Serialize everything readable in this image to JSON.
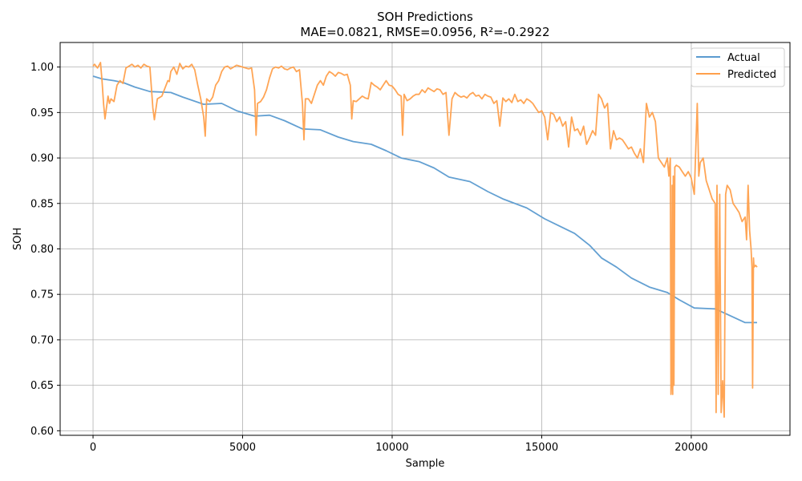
{
  "chart_data": {
    "type": "line",
    "title": "SOH Predictions",
    "subtitle": "MAE=0.0821, RMSE=0.0956, R²=-0.2922",
    "xlabel": "Sample",
    "ylabel": "SOH",
    "xlim": [
      -1100,
      23300
    ],
    "ylim": [
      0.595,
      1.027
    ],
    "x_ticks": [
      0,
      5000,
      10000,
      15000,
      20000
    ],
    "y_ticks": [
      0.6,
      0.65,
      0.7,
      0.75,
      0.8,
      0.85,
      0.9,
      0.95,
      1.0
    ],
    "x_tick_labels": [
      "0",
      "5000",
      "10000",
      "15000",
      "20000"
    ],
    "y_tick_labels": [
      "0.60",
      "0.65",
      "0.70",
      "0.75",
      "0.80",
      "0.85",
      "0.90",
      "0.95",
      "1.00"
    ],
    "grid": true,
    "legend": "top-right",
    "series": [
      {
        "name": "Actual",
        "color": "#5b9bd0",
        "x": [
          0,
          300,
          700,
          1000,
          1400,
          1900,
          2600,
          3000,
          3700,
          4300,
          4800,
          5400,
          5900,
          6400,
          7000,
          7600,
          8200,
          8700,
          9300,
          9800,
          10300,
          10900,
          11400,
          11900,
          12600,
          13200,
          13700,
          14500,
          15100,
          15600,
          16100,
          16600,
          17000,
          17500,
          18000,
          18600,
          19200,
          19600,
          20100,
          20800,
          21200,
          21800,
          22200
        ],
        "y": [
          0.99,
          0.987,
          0.985,
          0.983,
          0.978,
          0.973,
          0.972,
          0.967,
          0.959,
          0.96,
          0.952,
          0.946,
          0.947,
          0.941,
          0.932,
          0.931,
          0.923,
          0.918,
          0.915,
          0.908,
          0.9,
          0.896,
          0.889,
          0.879,
          0.874,
          0.863,
          0.855,
          0.845,
          0.833,
          0.825,
          0.817,
          0.804,
          0.79,
          0.78,
          0.768,
          0.758,
          0.752,
          0.744,
          0.735,
          0.734,
          0.728,
          0.719,
          0.719
        ]
      },
      {
        "name": "Predicted",
        "color": "#ffa04c",
        "x": [
          0,
          50,
          150,
          250,
          300,
          350,
          400,
          500,
          550,
          600,
          700,
          800,
          900,
          1000,
          1100,
          1200,
          1300,
          1400,
          1500,
          1600,
          1700,
          1800,
          1900,
          2000,
          2050,
          2150,
          2300,
          2500,
          2550,
          2600,
          2700,
          2800,
          2900,
          3000,
          3100,
          3200,
          3300,
          3400,
          3500,
          3600,
          3700,
          3750,
          3800,
          3900,
          4000,
          4100,
          4200,
          4300,
          4400,
          4500,
          4600,
          4800,
          5000,
          5200,
          5300,
          5400,
          5450,
          5500,
          5600,
          5700,
          5800,
          5900,
          6000,
          6100,
          6200,
          6300,
          6400,
          6500,
          6600,
          6700,
          6800,
          6900,
          7000,
          7050,
          7100,
          7200,
          7300,
          7400,
          7500,
          7600,
          7700,
          7800,
          7900,
          8000,
          8100,
          8200,
          8300,
          8400,
          8500,
          8600,
          8650,
          8700,
          8800,
          8900,
          9000,
          9100,
          9200,
          9300,
          9400,
          9500,
          9600,
          9700,
          9800,
          9900,
          10000,
          10100,
          10200,
          10300,
          10350,
          10400,
          10500,
          10600,
          10700,
          10800,
          10900,
          11000,
          11100,
          11200,
          11300,
          11400,
          11500,
          11600,
          11700,
          11800,
          11900,
          12000,
          12100,
          12200,
          12300,
          12400,
          12500,
          12600,
          12700,
          12800,
          12900,
          13000,
          13100,
          13200,
          13300,
          13400,
          13500,
          13600,
          13700,
          13800,
          13900,
          14000,
          14100,
          14200,
          14300,
          14400,
          14500,
          14600,
          14700,
          14800,
          14900,
          15000,
          15100,
          15200,
          15300,
          15400,
          15500,
          15600,
          15700,
          15800,
          15900,
          16000,
          16100,
          16200,
          16300,
          16400,
          16500,
          16600,
          16700,
          16800,
          16900,
          17000,
          17100,
          17200,
          17300,
          17400,
          17500,
          17600,
          17700,
          17800,
          17900,
          18000,
          18100,
          18200,
          18300,
          18400,
          18500,
          18600,
          18700,
          18800,
          18900,
          19000,
          19100,
          19200,
          19250,
          19300,
          19320,
          19340,
          19360,
          19380,
          19400,
          19420,
          19450,
          19500,
          19600,
          19700,
          19800,
          19900,
          20000,
          20100,
          20200,
          20250,
          20300,
          20400,
          20500,
          20600,
          20700,
          20800,
          20830,
          20860,
          20900,
          20950,
          21000,
          21050,
          21100,
          21150,
          21200,
          21300,
          21400,
          21500,
          21600,
          21700,
          21800,
          21850,
          21900,
          21950,
          22000,
          22030,
          22050,
          22080,
          22100,
          22150,
          22200
        ],
        "y": [
          1.001,
          1.003,
          0.999,
          1.005,
          0.985,
          0.96,
          0.943,
          0.968,
          0.96,
          0.965,
          0.962,
          0.98,
          0.985,
          0.982,
          0.999,
          1.001,
          1.003,
          1.0,
          1.002,
          0.999,
          1.003,
          1.001,
          1.0,
          0.955,
          0.942,
          0.965,
          0.968,
          0.985,
          0.984,
          0.995,
          1.0,
          0.992,
          1.004,
          0.998,
          1.001,
          1.0,
          1.003,
          0.997,
          0.98,
          0.965,
          0.945,
          0.924,
          0.965,
          0.962,
          0.967,
          0.98,
          0.985,
          0.995,
          1.0,
          1.001,
          0.998,
          1.002,
          1.0,
          0.998,
          0.999,
          0.975,
          0.925,
          0.96,
          0.962,
          0.967,
          0.975,
          0.988,
          0.998,
          1.0,
          0.999,
          1.001,
          0.998,
          0.997,
          0.999,
          1.0,
          0.995,
          0.997,
          0.96,
          0.92,
          0.965,
          0.965,
          0.96,
          0.97,
          0.98,
          0.985,
          0.98,
          0.99,
          0.995,
          0.993,
          0.99,
          0.994,
          0.993,
          0.991,
          0.992,
          0.98,
          0.943,
          0.963,
          0.962,
          0.965,
          0.968,
          0.966,
          0.965,
          0.983,
          0.98,
          0.978,
          0.975,
          0.98,
          0.985,
          0.98,
          0.979,
          0.975,
          0.97,
          0.968,
          0.925,
          0.97,
          0.963,
          0.965,
          0.968,
          0.97,
          0.97,
          0.975,
          0.972,
          0.977,
          0.975,
          0.973,
          0.976,
          0.975,
          0.97,
          0.972,
          0.925,
          0.965,
          0.972,
          0.969,
          0.967,
          0.968,
          0.966,
          0.97,
          0.972,
          0.968,
          0.969,
          0.965,
          0.97,
          0.968,
          0.967,
          0.96,
          0.963,
          0.935,
          0.966,
          0.962,
          0.965,
          0.961,
          0.97,
          0.962,
          0.964,
          0.96,
          0.965,
          0.963,
          0.96,
          0.955,
          0.95,
          0.952,
          0.945,
          0.92,
          0.95,
          0.948,
          0.94,
          0.945,
          0.935,
          0.94,
          0.912,
          0.945,
          0.93,
          0.932,
          0.925,
          0.935,
          0.915,
          0.922,
          0.93,
          0.925,
          0.97,
          0.965,
          0.955,
          0.96,
          0.91,
          0.93,
          0.92,
          0.922,
          0.92,
          0.915,
          0.91,
          0.912,
          0.905,
          0.9,
          0.91,
          0.895,
          0.96,
          0.945,
          0.95,
          0.94,
          0.9,
          0.895,
          0.89,
          0.9,
          0.88,
          0.9,
          0.64,
          0.655,
          0.87,
          0.64,
          0.88,
          0.65,
          0.89,
          0.892,
          0.89,
          0.885,
          0.88,
          0.885,
          0.878,
          0.86,
          0.96,
          0.88,
          0.895,
          0.9,
          0.875,
          0.865,
          0.855,
          0.85,
          0.62,
          0.87,
          0.64,
          0.86,
          0.62,
          0.655,
          0.615,
          0.86,
          0.87,
          0.865,
          0.85,
          0.845,
          0.84,
          0.83,
          0.835,
          0.81,
          0.87,
          0.82,
          0.8,
          0.78,
          0.647,
          0.79,
          0.78,
          0.782,
          0.78
        ]
      }
    ]
  }
}
